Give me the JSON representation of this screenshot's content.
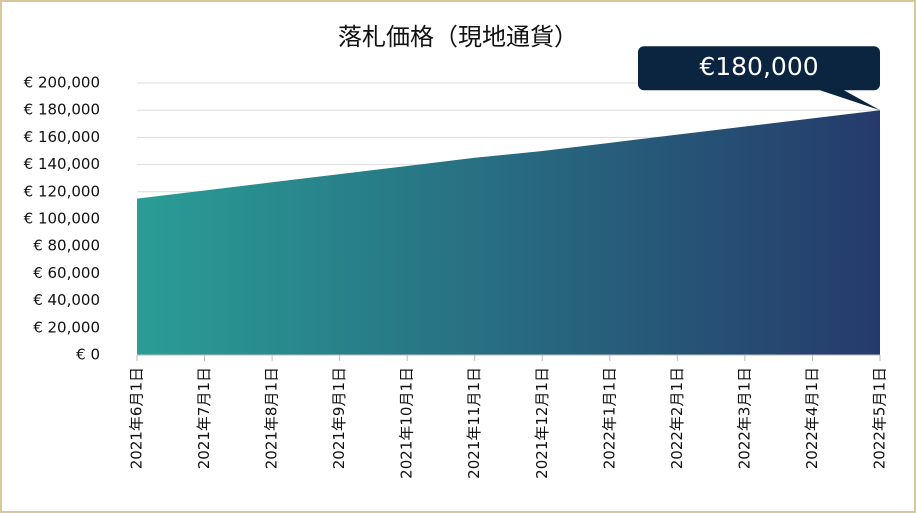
{
  "chart_data": {
    "type": "area",
    "title": "落札価格（現地通貨）",
    "categories": [
      "2021年6月1日",
      "2021年7月1日",
      "2021年8月1日",
      "2021年9月1日",
      "2021年10月1日",
      "2021年11月1日",
      "2021年12月1日",
      "2022年1月1日",
      "2022年2月1日",
      "2022年3月1日",
      "2022年4月1日",
      "2022年5月1日"
    ],
    "values": [
      115000,
      121000,
      127000,
      133000,
      139000,
      145000,
      150000,
      156000,
      162000,
      168000,
      174000,
      180000
    ],
    "value_labels": [
      null,
      null,
      null,
      null,
      null,
      null,
      null,
      null,
      null,
      null,
      null,
      "€180,000"
    ],
    "colors": [
      "#2a9d96",
      "#253a6b"
    ],
    "ylim": [
      0,
      200000
    ],
    "yticks": [
      {
        "value": 0,
        "label": "€ 0"
      },
      {
        "value": 20000,
        "label": "€ 20,000"
      },
      {
        "value": 40000,
        "label": "€ 40,000"
      },
      {
        "value": 60000,
        "label": "€ 60,000"
      },
      {
        "value": 80000,
        "label": "€ 80,000"
      },
      {
        "value": 100000,
        "label": "€ 100,000"
      },
      {
        "value": 120000,
        "label": "€ 120,000"
      },
      {
        "value": 140000,
        "label": "€ 140,000"
      },
      {
        "value": 160000,
        "label": "€ 160,000"
      },
      {
        "value": 180000,
        "label": "€ 180,000"
      },
      {
        "value": 200000,
        "label": "€ 200,000"
      }
    ],
    "grid": true
  }
}
